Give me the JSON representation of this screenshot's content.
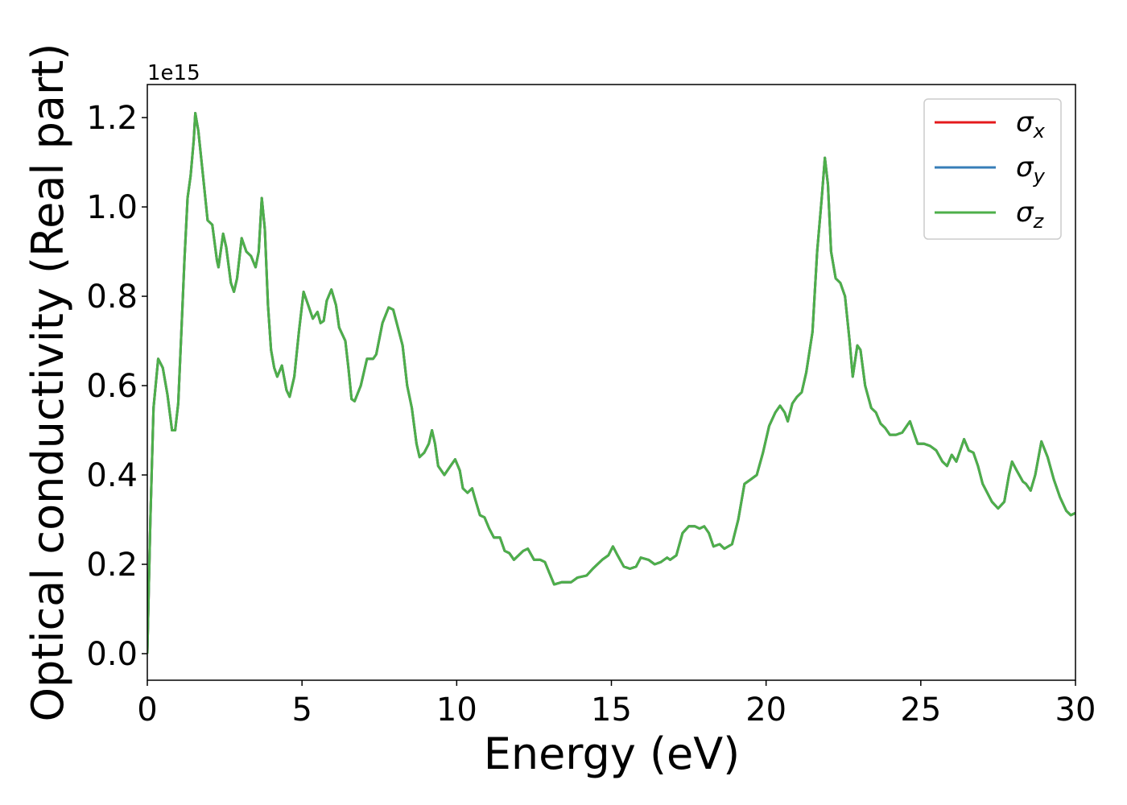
{
  "chart_data": {
    "type": "line",
    "xlabel": "Energy (eV)",
    "ylabel": "Optical conductivity (Real part)",
    "y_offset_label": "1e15",
    "xlim": [
      0,
      30
    ],
    "ylim": [
      -0.0595,
      1.274
    ],
    "xticks": [
      0,
      5,
      10,
      15,
      20,
      25,
      30
    ],
    "yticks": [
      {
        "value": 0,
        "label": "0.0"
      },
      0.2,
      0.4,
      0.6,
      0.8,
      {
        "value": 1,
        "label": "1.0"
      },
      1.2
    ],
    "legend": "upper right",
    "x": [
      0,
      0.1,
      0.2,
      0.35,
      0.5,
      0.65,
      0.8,
      0.9,
      1.0,
      1.1,
      1.2,
      1.3,
      1.4,
      1.5,
      1.55,
      1.65,
      1.8,
      1.95,
      2.1,
      2.25,
      2.3,
      2.45,
      2.55,
      2.7,
      2.8,
      2.9,
      3.05,
      3.2,
      3.35,
      3.5,
      3.6,
      3.7,
      3.8,
      3.9,
      4.0,
      4.1,
      4.2,
      4.35,
      4.5,
      4.6,
      4.75,
      4.9,
      5.05,
      5.2,
      5.35,
      5.5,
      5.6,
      5.7,
      5.8,
      5.95,
      6.1,
      6.2,
      6.4,
      6.5,
      6.6,
      6.7,
      6.9,
      7.1,
      7.3,
      7.4,
      7.6,
      7.8,
      7.95,
      8.1,
      8.25,
      8.4,
      8.55,
      8.7,
      8.8,
      8.95,
      9.1,
      9.2,
      9.3,
      9.4,
      9.6,
      9.8,
      9.95,
      10.1,
      10.2,
      10.35,
      10.5,
      10.6,
      10.75,
      10.9,
      11.05,
      11.2,
      11.4,
      11.55,
      11.7,
      11.85,
      12.0,
      12.15,
      12.3,
      12.5,
      12.7,
      12.85,
      13.0,
      13.15,
      13.4,
      13.7,
      13.9,
      14.2,
      14.4,
      14.7,
      14.9,
      15.05,
      15.2,
      15.4,
      15.6,
      15.8,
      15.95,
      16.2,
      16.4,
      16.6,
      16.8,
      16.9,
      17.1,
      17.3,
      17.5,
      17.7,
      17.85,
      18.0,
      18.15,
      18.3,
      18.5,
      18.65,
      18.9,
      19.1,
      19.3,
      19.5,
      19.7,
      19.9,
      20.1,
      20.3,
      20.45,
      20.6,
      20.7,
      20.85,
      21.0,
      21.15,
      21.3,
      21.5,
      21.65,
      21.8,
      21.9,
      22.0,
      22.1,
      22.25,
      22.4,
      22.55,
      22.7,
      22.8,
      22.95,
      23.05,
      23.2,
      23.4,
      23.55,
      23.7,
      23.85,
      24.0,
      24.2,
      24.4,
      24.55,
      24.65,
      24.8,
      24.9,
      25.1,
      25.3,
      25.5,
      25.7,
      25.85,
      26.0,
      26.15,
      26.3,
      26.4,
      26.55,
      26.7,
      26.85,
      27.0,
      27.3,
      27.5,
      27.7,
      27.85,
      27.95,
      28.1,
      28.3,
      28.4,
      28.55,
      28.7,
      28.9,
      29.1,
      29.3,
      29.5,
      29.7,
      29.85,
      30.0
    ],
    "series": [
      {
        "name": "σx",
        "color": "#e41a1c",
        "values": [
          0,
          0.3,
          0.55,
          0.66,
          0.64,
          0.58,
          0.5,
          0.5,
          0.56,
          0.72,
          0.88,
          1.02,
          1.07,
          1.15,
          1.21,
          1.17,
          1.07,
          0.97,
          0.96,
          0.88,
          0.865,
          0.94,
          0.91,
          0.83,
          0.81,
          0.84,
          0.93,
          0.9,
          0.89,
          0.865,
          0.9,
          1.02,
          0.95,
          0.78,
          0.68,
          0.64,
          0.62,
          0.645,
          0.59,
          0.575,
          0.62,
          0.72,
          0.81,
          0.78,
          0.75,
          0.765,
          0.74,
          0.745,
          0.79,
          0.815,
          0.78,
          0.73,
          0.7,
          0.64,
          0.57,
          0.565,
          0.6,
          0.66,
          0.66,
          0.67,
          0.74,
          0.775,
          0.77,
          0.73,
          0.69,
          0.6,
          0.55,
          0.47,
          0.44,
          0.45,
          0.47,
          0.5,
          0.47,
          0.42,
          0.4,
          0.42,
          0.435,
          0.41,
          0.37,
          0.36,
          0.37,
          0.345,
          0.31,
          0.305,
          0.28,
          0.26,
          0.26,
          0.23,
          0.225,
          0.21,
          0.22,
          0.23,
          0.235,
          0.21,
          0.21,
          0.205,
          0.18,
          0.155,
          0.16,
          0.16,
          0.17,
          0.175,
          0.19,
          0.21,
          0.22,
          0.24,
          0.22,
          0.195,
          0.19,
          0.195,
          0.215,
          0.21,
          0.2,
          0.205,
          0.215,
          0.21,
          0.22,
          0.27,
          0.285,
          0.285,
          0.28,
          0.285,
          0.27,
          0.24,
          0.245,
          0.235,
          0.245,
          0.3,
          0.38,
          0.39,
          0.4,
          0.45,
          0.51,
          0.54,
          0.555,
          0.54,
          0.52,
          0.56,
          0.575,
          0.585,
          0.63,
          0.72,
          0.9,
          1.02,
          1.11,
          1.05,
          0.9,
          0.84,
          0.83,
          0.8,
          0.7,
          0.62,
          0.69,
          0.68,
          0.6,
          0.55,
          0.54,
          0.515,
          0.505,
          0.49,
          0.49,
          0.495,
          0.51,
          0.52,
          0.49,
          0.47,
          0.47,
          0.465,
          0.455,
          0.43,
          0.42,
          0.445,
          0.43,
          0.46,
          0.48,
          0.455,
          0.45,
          0.42,
          0.38,
          0.34,
          0.325,
          0.34,
          0.4,
          0.43,
          0.41,
          0.385,
          0.38,
          0.365,
          0.4,
          0.475,
          0.44,
          0.39,
          0.35,
          0.32,
          0.31,
          0.315
        ]
      },
      {
        "name": "σy",
        "color": "#377eb8",
        "values": [
          0,
          0.3,
          0.55,
          0.66,
          0.64,
          0.58,
          0.5,
          0.5,
          0.56,
          0.72,
          0.88,
          1.02,
          1.07,
          1.15,
          1.21,
          1.17,
          1.07,
          0.97,
          0.96,
          0.88,
          0.865,
          0.94,
          0.91,
          0.83,
          0.81,
          0.84,
          0.93,
          0.9,
          0.89,
          0.865,
          0.9,
          1.02,
          0.95,
          0.78,
          0.68,
          0.64,
          0.62,
          0.645,
          0.59,
          0.575,
          0.62,
          0.72,
          0.81,
          0.78,
          0.75,
          0.765,
          0.74,
          0.745,
          0.79,
          0.815,
          0.78,
          0.73,
          0.7,
          0.64,
          0.57,
          0.565,
          0.6,
          0.66,
          0.66,
          0.67,
          0.74,
          0.775,
          0.77,
          0.73,
          0.69,
          0.6,
          0.55,
          0.47,
          0.44,
          0.45,
          0.47,
          0.5,
          0.47,
          0.42,
          0.4,
          0.42,
          0.435,
          0.41,
          0.37,
          0.36,
          0.37,
          0.345,
          0.31,
          0.305,
          0.28,
          0.26,
          0.26,
          0.23,
          0.225,
          0.21,
          0.22,
          0.23,
          0.235,
          0.21,
          0.21,
          0.205,
          0.18,
          0.155,
          0.16,
          0.16,
          0.17,
          0.175,
          0.19,
          0.21,
          0.22,
          0.24,
          0.22,
          0.195,
          0.19,
          0.195,
          0.215,
          0.21,
          0.2,
          0.205,
          0.215,
          0.21,
          0.22,
          0.27,
          0.285,
          0.285,
          0.28,
          0.285,
          0.27,
          0.24,
          0.245,
          0.235,
          0.245,
          0.3,
          0.38,
          0.39,
          0.4,
          0.45,
          0.51,
          0.54,
          0.555,
          0.54,
          0.52,
          0.56,
          0.575,
          0.585,
          0.63,
          0.72,
          0.9,
          1.02,
          1.11,
          1.05,
          0.9,
          0.84,
          0.83,
          0.8,
          0.7,
          0.62,
          0.69,
          0.68,
          0.6,
          0.55,
          0.54,
          0.515,
          0.505,
          0.49,
          0.49,
          0.495,
          0.51,
          0.52,
          0.49,
          0.47,
          0.47,
          0.465,
          0.455,
          0.43,
          0.42,
          0.445,
          0.43,
          0.46,
          0.48,
          0.455,
          0.45,
          0.42,
          0.38,
          0.34,
          0.325,
          0.34,
          0.4,
          0.43,
          0.41,
          0.385,
          0.38,
          0.365,
          0.4,
          0.475,
          0.44,
          0.39,
          0.35,
          0.32,
          0.31,
          0.315
        ]
      },
      {
        "name": "σz",
        "color": "#4daf4a",
        "values": [
          0,
          0.3,
          0.55,
          0.66,
          0.64,
          0.58,
          0.5,
          0.5,
          0.56,
          0.72,
          0.88,
          1.02,
          1.07,
          1.15,
          1.21,
          1.17,
          1.07,
          0.97,
          0.96,
          0.88,
          0.865,
          0.94,
          0.91,
          0.83,
          0.81,
          0.84,
          0.93,
          0.9,
          0.89,
          0.865,
          0.9,
          1.02,
          0.95,
          0.78,
          0.68,
          0.64,
          0.62,
          0.645,
          0.59,
          0.575,
          0.62,
          0.72,
          0.81,
          0.78,
          0.75,
          0.765,
          0.74,
          0.745,
          0.79,
          0.815,
          0.78,
          0.73,
          0.7,
          0.64,
          0.57,
          0.565,
          0.6,
          0.66,
          0.66,
          0.67,
          0.74,
          0.775,
          0.77,
          0.73,
          0.69,
          0.6,
          0.55,
          0.47,
          0.44,
          0.45,
          0.47,
          0.5,
          0.47,
          0.42,
          0.4,
          0.42,
          0.435,
          0.41,
          0.37,
          0.36,
          0.37,
          0.345,
          0.31,
          0.305,
          0.28,
          0.26,
          0.26,
          0.23,
          0.225,
          0.21,
          0.22,
          0.23,
          0.235,
          0.21,
          0.21,
          0.205,
          0.18,
          0.155,
          0.16,
          0.16,
          0.17,
          0.175,
          0.19,
          0.21,
          0.22,
          0.24,
          0.22,
          0.195,
          0.19,
          0.195,
          0.215,
          0.21,
          0.2,
          0.205,
          0.215,
          0.21,
          0.22,
          0.27,
          0.285,
          0.285,
          0.28,
          0.285,
          0.27,
          0.24,
          0.245,
          0.235,
          0.245,
          0.3,
          0.38,
          0.39,
          0.4,
          0.45,
          0.51,
          0.54,
          0.555,
          0.54,
          0.52,
          0.56,
          0.575,
          0.585,
          0.63,
          0.72,
          0.9,
          1.02,
          1.11,
          1.05,
          0.9,
          0.84,
          0.83,
          0.8,
          0.7,
          0.62,
          0.69,
          0.68,
          0.6,
          0.55,
          0.54,
          0.515,
          0.505,
          0.49,
          0.49,
          0.495,
          0.51,
          0.52,
          0.49,
          0.47,
          0.47,
          0.465,
          0.455,
          0.43,
          0.42,
          0.445,
          0.43,
          0.46,
          0.48,
          0.455,
          0.45,
          0.42,
          0.38,
          0.34,
          0.325,
          0.34,
          0.4,
          0.43,
          0.41,
          0.385,
          0.38,
          0.365,
          0.4,
          0.475,
          0.44,
          0.39,
          0.35,
          0.32,
          0.31,
          0.315
        ]
      }
    ]
  }
}
